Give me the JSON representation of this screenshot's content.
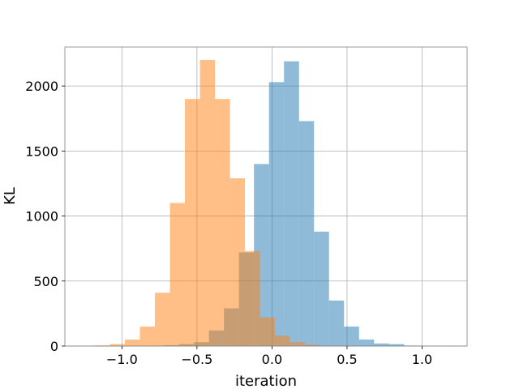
{
  "chart_data": {
    "type": "histogram",
    "title": "",
    "xlabel": "iteration",
    "ylabel": "KL",
    "xlim": [
      -1.38,
      1.3
    ],
    "ylim": [
      0,
      2300
    ],
    "grid": true,
    "x_ticks": [
      {
        "value": -1.0,
        "label": "−1.0"
      },
      {
        "value": -0.5,
        "label": "−0.5"
      },
      {
        "value": 0.0,
        "label": "0.0"
      },
      {
        "value": 0.5,
        "label": "0.5"
      },
      {
        "value": 1.0,
        "label": "1.0"
      }
    ],
    "y_ticks": [
      {
        "value": 0,
        "label": "0"
      },
      {
        "value": 500,
        "label": "500"
      },
      {
        "value": 1000,
        "label": "1000"
      },
      {
        "value": 1500,
        "label": "1500"
      },
      {
        "value": 2000,
        "label": "2000"
      }
    ],
    "series": [
      {
        "color": "#1f77b4",
        "opacity": 0.5,
        "bins": [
          {
            "x0": -0.82,
            "x1": -0.72,
            "count": 3
          },
          {
            "x0": -0.72,
            "x1": -0.62,
            "count": 6
          },
          {
            "x0": -0.62,
            "x1": -0.52,
            "count": 15
          },
          {
            "x0": -0.52,
            "x1": -0.42,
            "count": 30
          },
          {
            "x0": -0.42,
            "x1": -0.32,
            "count": 120
          },
          {
            "x0": -0.32,
            "x1": -0.22,
            "count": 290
          },
          {
            "x0": -0.22,
            "x1": -0.12,
            "count": 720
          },
          {
            "x0": -0.12,
            "x1": -0.02,
            "count": 1400
          },
          {
            "x0": -0.02,
            "x1": 0.08,
            "count": 2030
          },
          {
            "x0": 0.08,
            "x1": 0.18,
            "count": 2190
          },
          {
            "x0": 0.18,
            "x1": 0.28,
            "count": 1730
          },
          {
            "x0": 0.28,
            "x1": 0.38,
            "count": 880
          },
          {
            "x0": 0.38,
            "x1": 0.48,
            "count": 350
          },
          {
            "x0": 0.48,
            "x1": 0.58,
            "count": 150
          },
          {
            "x0": 0.58,
            "x1": 0.68,
            "count": 50
          },
          {
            "x0": 0.68,
            "x1": 0.78,
            "count": 20
          },
          {
            "x0": 0.78,
            "x1": 0.88,
            "count": 15
          },
          {
            "x0": 0.88,
            "x1": 0.98,
            "count": 4
          },
          {
            "x0": 0.98,
            "x1": 1.08,
            "count": 2
          },
          {
            "x0": 1.08,
            "x1": 1.18,
            "count": 1
          }
        ]
      },
      {
        "color": "#ff7f0e",
        "opacity": 0.5,
        "bins": [
          {
            "x0": -1.28,
            "x1": -1.18,
            "count": 2
          },
          {
            "x0": -1.18,
            "x1": -1.08,
            "count": 5
          },
          {
            "x0": -1.08,
            "x1": -0.98,
            "count": 15
          },
          {
            "x0": -0.98,
            "x1": -0.88,
            "count": 50
          },
          {
            "x0": -0.88,
            "x1": -0.78,
            "count": 150
          },
          {
            "x0": -0.78,
            "x1": -0.68,
            "count": 410
          },
          {
            "x0": -0.68,
            "x1": -0.58,
            "count": 1100
          },
          {
            "x0": -0.58,
            "x1": -0.48,
            "count": 1900
          },
          {
            "x0": -0.48,
            "x1": -0.38,
            "count": 2200
          },
          {
            "x0": -0.38,
            "x1": -0.28,
            "count": 1900
          },
          {
            "x0": -0.28,
            "x1": -0.18,
            "count": 1290
          },
          {
            "x0": -0.18,
            "x1": -0.08,
            "count": 730
          },
          {
            "x0": -0.08,
            "x1": 0.02,
            "count": 220
          },
          {
            "x0": 0.02,
            "x1": 0.12,
            "count": 80
          },
          {
            "x0": 0.12,
            "x1": 0.22,
            "count": 30
          },
          {
            "x0": 0.22,
            "x1": 0.32,
            "count": 10
          },
          {
            "x0": 0.32,
            "x1": 0.42,
            "count": 3
          }
        ]
      }
    ]
  }
}
